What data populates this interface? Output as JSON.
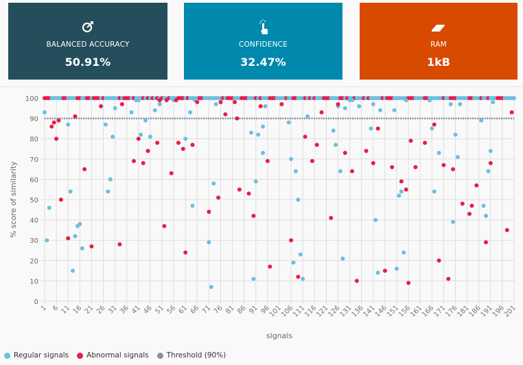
{
  "cards": [
    {
      "label": "BALANCED ACCURACY",
      "value": "50.91%",
      "icon": "target-arrow-icon",
      "color": "#244e5c"
    },
    {
      "label": "CONFIDENCE",
      "value": "32.47%",
      "icon": "tap-finger-icon",
      "color": "#0088ad"
    },
    {
      "label": "RAM",
      "value": "1kB",
      "icon": "memory-chip-icon",
      "color": "#d84a00"
    }
  ],
  "legend": [
    {
      "label": "Regular signals",
      "color": "#6cbfdf"
    },
    {
      "label": "Abnormal signals",
      "color": "#ea1b4b"
    },
    {
      "label": "Threshold (90%)",
      "color": "#8a9199"
    }
  ],
  "chart_data": {
    "type": "scatter",
    "xlabel": "signals",
    "ylabel": "% score of similarity",
    "xlim": [
      1,
      201
    ],
    "ylim": [
      0,
      100
    ],
    "x_ticks": [
      1,
      6,
      11,
      16,
      21,
      26,
      31,
      36,
      41,
      46,
      51,
      56,
      61,
      66,
      71,
      76,
      81,
      86,
      91,
      96,
      101,
      106,
      111,
      116,
      121,
      126,
      131,
      136,
      141,
      146,
      151,
      156,
      161,
      166,
      171,
      176,
      181,
      186,
      191,
      196,
      201
    ],
    "y_ticks": [
      0,
      10,
      20,
      30,
      40,
      50,
      60,
      70,
      80,
      90,
      100
    ],
    "grid": true,
    "legend_placement": "bottom-left",
    "threshold": 90,
    "regular_off_100": [
      [
        1,
        93
      ],
      [
        2,
        30
      ],
      [
        3,
        46
      ],
      [
        11,
        87
      ],
      [
        12,
        54
      ],
      [
        13,
        15
      ],
      [
        14,
        32
      ],
      [
        15,
        37
      ],
      [
        16,
        38
      ],
      [
        17,
        26
      ],
      [
        27,
        87
      ],
      [
        28,
        54
      ],
      [
        29,
        60
      ],
      [
        30,
        81
      ],
      [
        31,
        95
      ],
      [
        38,
        93
      ],
      [
        40,
        99
      ],
      [
        41,
        99
      ],
      [
        42,
        82
      ],
      [
        44,
        89
      ],
      [
        46,
        81
      ],
      [
        48,
        94
      ],
      [
        50,
        97
      ],
      [
        56,
        99
      ],
      [
        61,
        80
      ],
      [
        63,
        93
      ],
      [
        64,
        47
      ],
      [
        65,
        99
      ],
      [
        71,
        29
      ],
      [
        72,
        7
      ],
      [
        73,
        58
      ],
      [
        74,
        97
      ],
      [
        89,
        83
      ],
      [
        90,
        11
      ],
      [
        91,
        59
      ],
      [
        92,
        82
      ],
      [
        94,
        86
      ],
      [
        94,
        73
      ],
      [
        95,
        96
      ],
      [
        105,
        88
      ],
      [
        106,
        70
      ],
      [
        107,
        19
      ],
      [
        108,
        64
      ],
      [
        109,
        50
      ],
      [
        110,
        23
      ],
      [
        111,
        11
      ],
      [
        113,
        91
      ],
      [
        124,
        84
      ],
      [
        125,
        77
      ],
      [
        126,
        96
      ],
      [
        127,
        64
      ],
      [
        128,
        21
      ],
      [
        129,
        95
      ],
      [
        131,
        99
      ],
      [
        132,
        99
      ],
      [
        135,
        96
      ],
      [
        140,
        85
      ],
      [
        141,
        97
      ],
      [
        142,
        40
      ],
      [
        143,
        14
      ],
      [
        144,
        94
      ],
      [
        150,
        94
      ],
      [
        151,
        16
      ],
      [
        152,
        52
      ],
      [
        153,
        54
      ],
      [
        154,
        24
      ],
      [
        155,
        99
      ],
      [
        165,
        99
      ],
      [
        166,
        85
      ],
      [
        167,
        54
      ],
      [
        169,
        73
      ],
      [
        174,
        97
      ],
      [
        175,
        39
      ],
      [
        176,
        82
      ],
      [
        177,
        71
      ],
      [
        178,
        97
      ],
      [
        187,
        89
      ],
      [
        188,
        47
      ],
      [
        189,
        42
      ],
      [
        190,
        64
      ],
      [
        191,
        74
      ],
      [
        192,
        98
      ]
    ],
    "abnormal_off_100": [
      [
        4,
        86
      ],
      [
        5,
        88
      ],
      [
        6,
        80
      ],
      [
        7,
        89
      ],
      [
        8,
        50
      ],
      [
        11,
        31
      ],
      [
        14,
        91
      ],
      [
        18,
        65
      ],
      [
        21,
        27
      ],
      [
        25,
        96
      ],
      [
        33,
        28
      ],
      [
        34,
        97
      ],
      [
        39,
        69
      ],
      [
        41,
        80
      ],
      [
        43,
        68
      ],
      [
        45,
        74
      ],
      [
        49,
        78
      ],
      [
        50,
        99
      ],
      [
        52,
        37
      ],
      [
        53,
        99
      ],
      [
        55,
        63
      ],
      [
        57,
        99
      ],
      [
        58,
        78
      ],
      [
        60,
        75
      ],
      [
        61,
        24
      ],
      [
        64,
        77
      ],
      [
        66,
        98
      ],
      [
        71,
        44
      ],
      [
        75,
        51
      ],
      [
        76,
        98
      ],
      [
        78,
        92
      ],
      [
        82,
        98
      ],
      [
        83,
        90
      ],
      [
        84,
        55
      ],
      [
        88,
        53
      ],
      [
        90,
        42
      ],
      [
        93,
        96
      ],
      [
        96,
        69
      ],
      [
        97,
        17
      ],
      [
        102,
        97
      ],
      [
        106,
        30
      ],
      [
        109,
        12
      ],
      [
        112,
        81
      ],
      [
        115,
        69
      ],
      [
        117,
        77
      ],
      [
        119,
        93
      ],
      [
        123,
        41
      ],
      [
        126,
        97
      ],
      [
        129,
        73
      ],
      [
        132,
        64
      ],
      [
        134,
        10
      ],
      [
        138,
        74
      ],
      [
        141,
        68
      ],
      [
        143,
        85
      ],
      [
        146,
        15
      ],
      [
        149,
        66
      ],
      [
        153,
        59
      ],
      [
        155,
        55
      ],
      [
        156,
        9
      ],
      [
        157,
        79
      ],
      [
        159,
        66
      ],
      [
        163,
        78
      ],
      [
        167,
        87
      ],
      [
        169,
        20
      ],
      [
        171,
        67
      ],
      [
        173,
        11
      ],
      [
        175,
        65
      ],
      [
        179,
        48
      ],
      [
        182,
        43
      ],
      [
        183,
        47
      ],
      [
        185,
        57
      ],
      [
        189,
        29
      ],
      [
        191,
        68
      ],
      [
        198,
        35
      ],
      [
        200,
        93
      ]
    ],
    "abnormal_at_100": [
      1,
      2,
      3,
      9,
      10,
      15,
      16,
      19,
      20,
      22,
      23,
      24,
      26,
      33,
      35,
      36,
      37,
      39,
      43,
      45,
      47,
      49,
      51,
      54,
      58,
      59,
      60,
      62,
      67,
      68,
      77,
      79,
      80,
      81,
      85,
      86,
      87,
      91,
      93,
      97,
      98,
      99,
      104,
      107,
      108,
      112,
      114,
      116,
      120,
      121,
      122,
      127,
      128,
      130,
      133,
      137,
      139,
      145,
      147,
      148,
      149,
      156,
      157,
      158,
      163,
      164,
      171,
      174,
      175,
      176,
      182,
      183,
      187,
      190,
      194,
      195,
      196
    ]
  }
}
